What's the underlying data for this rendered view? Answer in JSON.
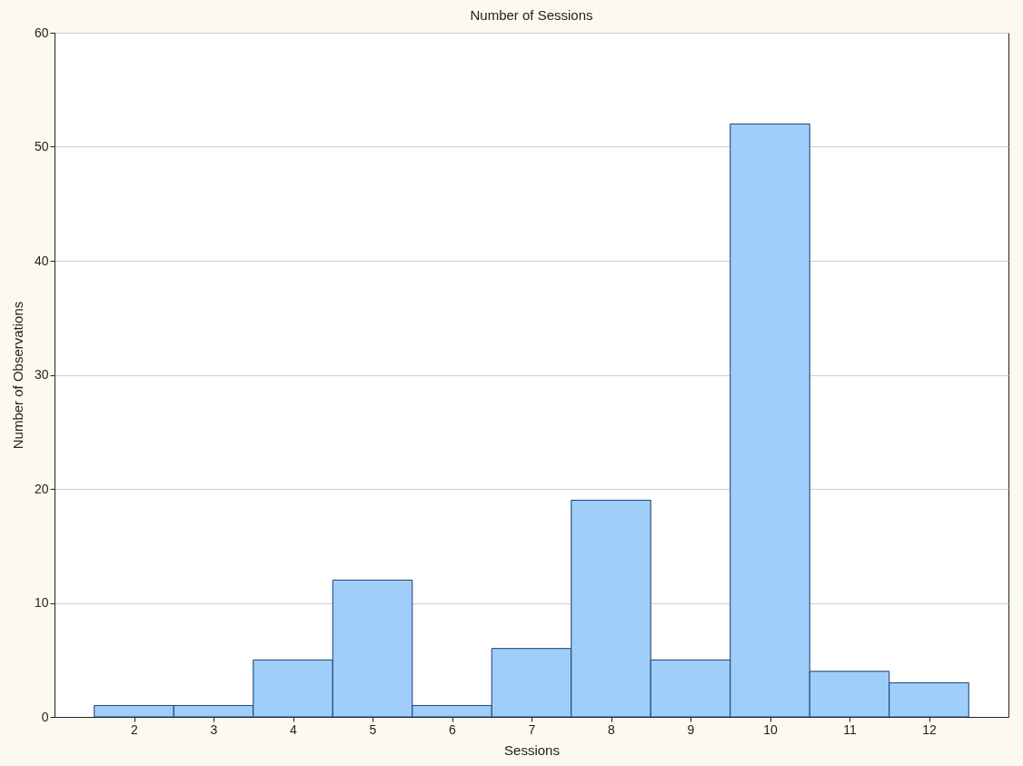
{
  "chart_data": {
    "type": "histogram",
    "title": "Number of Sessions",
    "xlabel": "Sessions",
    "ylabel": "Number of Observations",
    "bins": [
      1.5,
      2.5,
      3.5,
      4.5,
      5.5,
      6.5,
      7.5,
      8.5,
      9.5,
      10.5,
      11.5,
      12.5
    ],
    "values": [
      1,
      1,
      5,
      12,
      1,
      6,
      19,
      5,
      52,
      4,
      3
    ],
    "color": "#9fcefb",
    "xlim": [
      1,
      13
    ],
    "xticks": [
      2,
      3,
      4,
      5,
      6,
      7,
      8,
      9,
      10,
      11,
      12
    ],
    "ylim": [
      0,
      60
    ],
    "yticks": [
      0,
      10,
      20,
      30,
      40,
      50,
      60
    ],
    "grid": "y"
  }
}
